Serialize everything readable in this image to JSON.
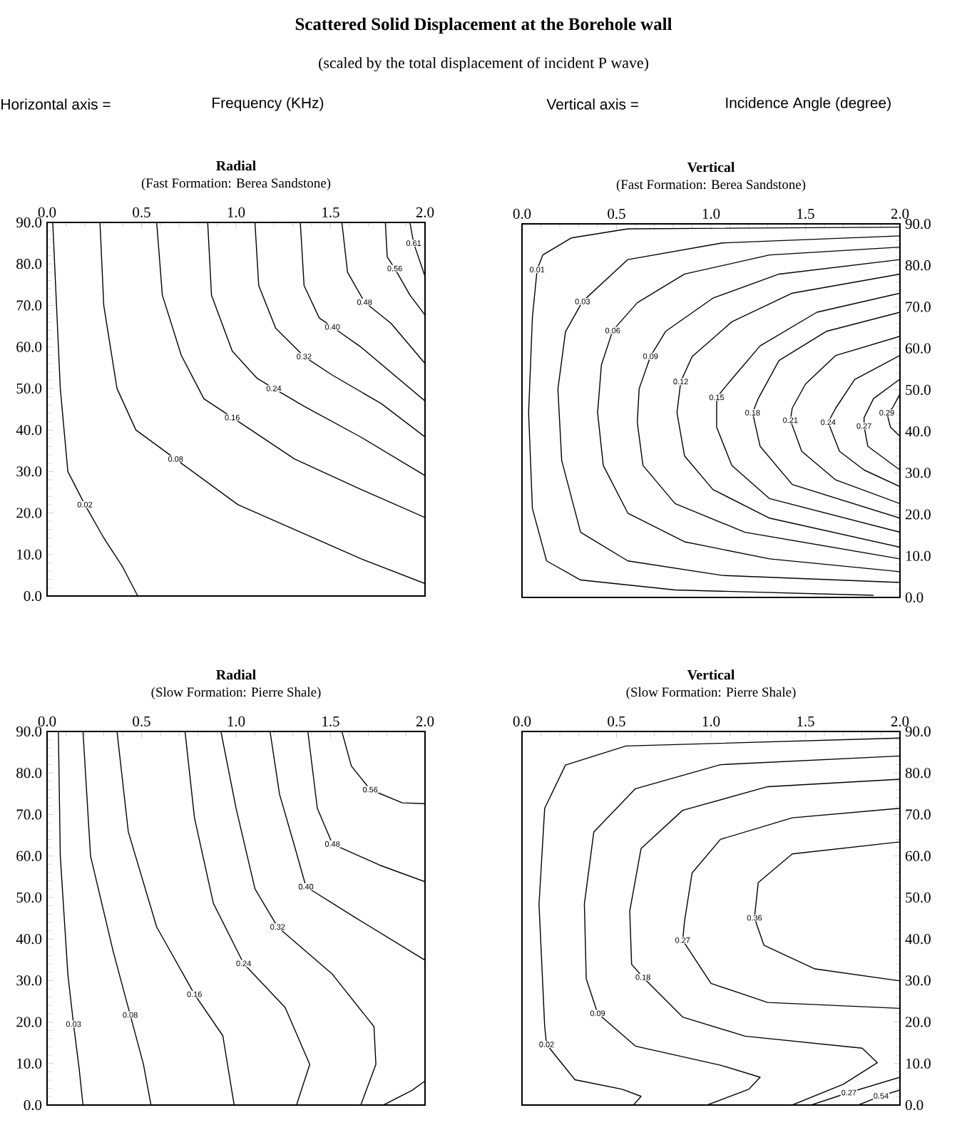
{
  "chart_data": [
    {
      "type": "other",
      "title": "Scattered  Solid  Displacement  at  the  Borehole  wall",
      "subtitle": "(scaled by the total displacement of incident P wave)",
      "annotations": [
        "Horizontal axis =",
        "Frequency (KHz)",
        "Vertical axis =",
        "Incidence Angle (degree)"
      ]
    },
    {
      "type": "line",
      "title": "Radial",
      "subtitle": "(Fast Formation: Berea Sandstone)",
      "marker": "none",
      "xlim": [
        0,
        2
      ],
      "ylim": [
        0,
        90
      ],
      "xticks": [
        {
          "value": 0,
          "label": "0.0"
        },
        {
          "value": 0.5,
          "label": "0.5"
        },
        {
          "value": 1,
          "label": "1.0"
        },
        {
          "value": 1.5,
          "label": "1.5"
        },
        {
          "value": 2,
          "label": "2.0"
        }
      ],
      "yticks": [
        {
          "value": 0,
          "label": "0.0"
        },
        {
          "value": 10,
          "label": "10.0"
        },
        {
          "value": 20,
          "label": "20.0"
        },
        {
          "value": 30,
          "label": "30.0"
        },
        {
          "value": 40,
          "label": "40.0"
        },
        {
          "value": 50,
          "label": "50.0"
        },
        {
          "value": 60,
          "label": "60.0"
        },
        {
          "value": 70,
          "label": "70.0"
        },
        {
          "value": 80,
          "label": "80.0"
        },
        {
          "value": 90,
          "label": "90.0"
        }
      ],
      "series": [
        {
          "color": "#000000",
          "x": [
            0.03,
            0.05,
            0.07,
            0.11,
            0.2,
            0.3,
            0.4,
            0.48
          ],
          "values": [
            90,
            70,
            50,
            30,
            22,
            14,
            7,
            0
          ]
        },
        {
          "color": "#000000",
          "x": [
            0.28,
            0.3,
            0.37,
            0.47,
            0.68,
            1.01,
            1.36,
            1.66,
            2.0
          ],
          "values": [
            90,
            70,
            50,
            40,
            33,
            22,
            15,
            9,
            3
          ]
        },
        {
          "color": "#000000",
          "x": [
            0.58,
            0.61,
            0.71,
            0.83,
            0.98,
            1.06,
            1.31,
            1.66,
            2.0
          ],
          "values": [
            90,
            72.5,
            58,
            47.5,
            43,
            40.6,
            33,
            25.7,
            18.9
          ]
        },
        {
          "color": "#000000",
          "x": [
            0.85,
            0.87,
            0.98,
            1.11,
            1.2,
            1.36,
            1.66,
            2.0
          ],
          "values": [
            90,
            72.5,
            59,
            52.5,
            50,
            45.7,
            38.3,
            29
          ]
        },
        {
          "color": "#000000",
          "x": [
            1.1,
            1.12,
            1.21,
            1.31,
            1.36,
            1.51,
            1.77,
            2.0
          ],
          "values": [
            90,
            74.8,
            64.5,
            60,
            57.7,
            53.2,
            46.3,
            38.3
          ]
        },
        {
          "color": "#000000",
          "x": [
            1.34,
            1.36,
            1.44,
            1.51,
            1.66,
            2.0
          ],
          "values": [
            90,
            74.8,
            67,
            64.8,
            60,
            47
          ]
        },
        {
          "color": "#000000",
          "x": [
            1.56,
            1.59,
            1.68,
            1.82,
            2.0
          ],
          "values": [
            90,
            78,
            70.8,
            65.7,
            56
          ]
        },
        {
          "color": "#000000",
          "x": [
            1.79,
            1.8,
            1.84,
            1.92,
            2.0
          ],
          "values": [
            90,
            81.7,
            78.9,
            72.5,
            67.7
          ]
        },
        {
          "color": "#000000",
          "x": [
            1.92,
            1.94,
            2.0
          ],
          "values": [
            90,
            85,
            77
          ]
        }
      ],
      "annotations": [
        {
          "text": "0.02",
          "x": 0.2,
          "y": 22
        },
        {
          "text": "0.08",
          "x": 0.68,
          "y": 33
        },
        {
          "text": "0.16",
          "x": 0.98,
          "y": 43
        },
        {
          "text": "0.24",
          "x": 1.2,
          "y": 50
        },
        {
          "text": "0.32",
          "x": 1.36,
          "y": 57.7
        },
        {
          "text": "0.40",
          "x": 1.51,
          "y": 64.8
        },
        {
          "text": "0.48",
          "x": 1.68,
          "y": 70.8
        },
        {
          "text": "0.56",
          "x": 1.84,
          "y": 78.9
        },
        {
          "text": "0.61",
          "x": 1.94,
          "y": 85
        }
      ]
    },
    {
      "type": "line",
      "title": "Vertical",
      "subtitle": "(Fast Formation: Berea Sandstone)",
      "marker": "none",
      "xlim": [
        0,
        2
      ],
      "ylim": [
        0,
        90
      ],
      "xticks": [
        {
          "value": 0,
          "label": "0.0"
        },
        {
          "value": 0.5,
          "label": "0.5"
        },
        {
          "value": 1,
          "label": "1.0"
        },
        {
          "value": 1.5,
          "label": "1.5"
        },
        {
          "value": 2,
          "label": "2.0"
        }
      ],
      "yticks": [
        {
          "value": 0,
          "label": "0.0"
        },
        {
          "value": 10,
          "label": "10.0"
        },
        {
          "value": 20,
          "label": "20.0"
        },
        {
          "value": 30,
          "label": "30.0"
        },
        {
          "value": 40,
          "label": "40.0"
        },
        {
          "value": 50,
          "label": "50.0"
        },
        {
          "value": 60,
          "label": "60.0"
        },
        {
          "value": 70,
          "label": "70.0"
        },
        {
          "value": 80,
          "label": "80.0"
        },
        {
          "value": 90,
          "label": "90.0"
        }
      ],
      "series": [
        {
          "color": "#000000",
          "x": [
            2,
            0.56,
            0.26,
            0.11,
            0.08,
            0.055,
            0.035,
            0.055,
            0.13,
            0.31,
            0.81,
            1.86
          ],
          "values": [
            89.2,
            88.8,
            86.6,
            82.5,
            79,
            67.5,
            44.5,
            21.4,
            8.8,
            4.2,
            1.8,
            0.5
          ]
        },
        {
          "color": "#000000",
          "x": [
            2,
            1.06,
            0.56,
            0.32,
            0.23,
            0.19,
            0.21,
            0.31,
            0.56,
            1.06,
            2
          ],
          "values": [
            87.1,
            85.4,
            81.4,
            71.3,
            64,
            50.2,
            33,
            15.7,
            8.8,
            5.3,
            3.6
          ]
        },
        {
          "color": "#000000",
          "x": [
            2,
            1.31,
            0.86,
            0.61,
            0.48,
            0.42,
            0.4,
            0.43,
            0.56,
            0.86,
            1.31,
            2
          ],
          "values": [
            84.4,
            82.5,
            77.9,
            71,
            64.3,
            56,
            44.5,
            31.8,
            20.3,
            13.4,
            9.3,
            6.2
          ]
        },
        {
          "color": "#000000",
          "x": [
            2,
            1.36,
            1.01,
            0.76,
            0.68,
            0.62,
            0.61,
            0.64,
            0.81,
            1.18,
            2
          ],
          "values": [
            81.4,
            77.9,
            72.1,
            64.1,
            58.1,
            50.3,
            42.2,
            31.8,
            22.6,
            15.7,
            9.3
          ]
        },
        {
          "color": "#000000",
          "x": [
            2,
            1.43,
            1.11,
            0.9,
            0.84,
            0.82,
            0.86,
            1.01,
            1.31,
            2
          ],
          "values": [
            77.9,
            73.3,
            66.4,
            58,
            52,
            44.5,
            34.1,
            26,
            19.1,
            12.1
          ]
        },
        {
          "color": "#000000",
          "x": [
            2,
            1.56,
            1.26,
            1.11,
            1.03,
            1.03,
            1.11,
            1.31,
            2
          ],
          "values": [
            73.3,
            68.7,
            60.6,
            52.6,
            48.2,
            41,
            31.8,
            23.8,
            15.7
          ]
        },
        {
          "color": "#000000",
          "x": [
            2,
            1.61,
            1.36,
            1.25,
            1.22,
            1.26,
            1.43,
            2
          ],
          "values": [
            68.7,
            64.1,
            57.1,
            47.9,
            44.5,
            36.4,
            27.2,
            19.1
          ]
        },
        {
          "color": "#000000",
          "x": [
            2,
            1.66,
            1.5,
            1.43,
            1.42,
            1.48,
            1.66,
            2
          ],
          "values": [
            62.9,
            58.3,
            51.4,
            45.6,
            42.7,
            35.2,
            28.3,
            22.6
          ]
        },
        {
          "color": "#000000",
          "x": [
            2,
            1.76,
            1.66,
            1.62,
            1.68,
            1.81,
            2
          ],
          "values": [
            58.3,
            52.5,
            45.6,
            42.2,
            35.2,
            30.7,
            26.7
          ]
        },
        {
          "color": "#000000",
          "x": [
            2,
            1.86,
            1.81,
            1.81,
            1.83,
            2
          ],
          "values": [
            52.6,
            47.9,
            43.3,
            41.3,
            36.4,
            30.7
          ]
        },
        {
          "color": "#000000",
          "x": [
            2,
            1.96,
            1.93,
            1.95,
            2
          ],
          "values": [
            49,
            45.6,
            44.5,
            41,
            38.8
          ]
        }
      ],
      "annotations": [
        {
          "text": "0.01",
          "x": 0.08,
          "y": 79
        },
        {
          "text": "0.03",
          "x": 0.32,
          "y": 71.3
        },
        {
          "text": "0.06",
          "x": 0.48,
          "y": 64.3
        },
        {
          "text": "0.09",
          "x": 0.68,
          "y": 58.1
        },
        {
          "text": "0.12",
          "x": 0.84,
          "y": 52
        },
        {
          "text": "0.15",
          "x": 1.03,
          "y": 48.2
        },
        {
          "text": "0.18",
          "x": 1.22,
          "y": 44.5
        },
        {
          "text": "0.21",
          "x": 1.42,
          "y": 42.7
        },
        {
          "text": "0.24",
          "x": 1.62,
          "y": 42.2
        },
        {
          "text": "0.27",
          "x": 1.81,
          "y": 41.3
        },
        {
          "text": "0.29",
          "x": 1.93,
          "y": 44.5
        }
      ]
    },
    {
      "type": "line",
      "title": "Radial",
      "subtitle": "(Slow Formation: Pierre Shale)",
      "marker": "none",
      "xlim": [
        0,
        2
      ],
      "ylim": [
        0,
        90
      ],
      "xticks": [
        {
          "value": 0,
          "label": "0.0"
        },
        {
          "value": 0.5,
          "label": "0.5"
        },
        {
          "value": 1,
          "label": "1.0"
        },
        {
          "value": 1.5,
          "label": "1.5"
        },
        {
          "value": 2,
          "label": "2.0"
        }
      ],
      "yticks": [
        {
          "value": 0,
          "label": "0.0"
        },
        {
          "value": 10,
          "label": "10.0"
        },
        {
          "value": 20,
          "label": "20.0"
        },
        {
          "value": 30,
          "label": "30.0"
        },
        {
          "value": 40,
          "label": "40.0"
        },
        {
          "value": 50,
          "label": "50.0"
        },
        {
          "value": 60,
          "label": "60.0"
        },
        {
          "value": 70,
          "label": "70.0"
        },
        {
          "value": 80,
          "label": "80.0"
        },
        {
          "value": 90,
          "label": "90.0"
        }
      ],
      "series": [
        {
          "color": "#000000",
          "x": [
            0.06,
            0.07,
            0.11,
            0.14,
            0.17,
            0.19
          ],
          "values": [
            90,
            60,
            31.5,
            19.5,
            8.7,
            0
          ]
        },
        {
          "color": "#000000",
          "x": [
            0.19,
            0.23,
            0.35,
            0.44,
            0.51,
            0.55
          ],
          "values": [
            90,
            60,
            37,
            21.7,
            9.8,
            0
          ]
        },
        {
          "color": "#000000",
          "x": [
            0.37,
            0.43,
            0.58,
            0.78,
            0.93,
            0.99
          ],
          "values": [
            90,
            65.8,
            42.9,
            26.7,
            16.7,
            0
          ]
        },
        {
          "color": "#000000",
          "x": [
            0.73,
            0.78,
            0.88,
            1.04,
            1.26,
            1.39,
            1.32
          ],
          "values": [
            90,
            69.2,
            48.6,
            34.1,
            23.5,
            9.8,
            0
          ]
        },
        {
          "color": "#000000",
          "x": [
            0.92,
            1.0,
            1.1,
            1.22,
            1.51,
            1.73,
            1.74,
            1.66
          ],
          "values": [
            90,
            71.5,
            52.1,
            42.9,
            31.5,
            18.9,
            9.8,
            0
          ]
        },
        {
          "color": "#000000",
          "x": [
            1.18,
            1.23,
            1.31,
            1.37,
            1.63,
            2
          ],
          "values": [
            90,
            74.9,
            62.3,
            52.6,
            45.2,
            34.9
          ]
        },
        {
          "color": "#000000",
          "x": [
            1.38,
            1.43,
            1.51,
            1.76,
            2
          ],
          "values": [
            90,
            71.5,
            62.9,
            57.8,
            53.8
          ]
        },
        {
          "color": "#000000",
          "x": [
            1.56,
            1.61,
            1.71,
            1.88,
            2
          ],
          "values": [
            90,
            81.7,
            76,
            72.8,
            72.6
          ]
        },
        {
          "color": "#000000",
          "x": [
            1.78,
            1.93,
            2
          ],
          "values": [
            0,
            3.5,
            5.8
          ]
        }
      ],
      "annotations": [
        {
          "text": "0.03",
          "x": 0.14,
          "y": 19.5
        },
        {
          "text": "0.08",
          "x": 0.44,
          "y": 21.7
        },
        {
          "text": "0.16",
          "x": 0.78,
          "y": 26.7
        },
        {
          "text": "0.24",
          "x": 1.04,
          "y": 34.1
        },
        {
          "text": "0.32",
          "x": 1.22,
          "y": 42.9
        },
        {
          "text": "0.40",
          "x": 1.37,
          "y": 52.6
        },
        {
          "text": "0.48",
          "x": 1.51,
          "y": 62.9
        },
        {
          "text": "0.56",
          "x": 1.71,
          "y": 76
        }
      ]
    },
    {
      "type": "line",
      "title": "Vertical",
      "subtitle": "(Slow Formation: Pierre Shale)",
      "marker": "none",
      "xlim": [
        0,
        2
      ],
      "ylim": [
        0,
        90
      ],
      "xticks": [
        {
          "value": 0,
          "label": "0.0"
        },
        {
          "value": 0.5,
          "label": "0.5"
        },
        {
          "value": 1,
          "label": "1.0"
        },
        {
          "value": 1.5,
          "label": "1.5"
        },
        {
          "value": 2,
          "label": "2.0"
        }
      ],
      "yticks": [
        {
          "value": 0,
          "label": "0.0"
        },
        {
          "value": 10,
          "label": "10.0"
        },
        {
          "value": 20,
          "label": "20.0"
        },
        {
          "value": 30,
          "label": "30.0"
        },
        {
          "value": 40,
          "label": "40.0"
        },
        {
          "value": 50,
          "label": "50.0"
        },
        {
          "value": 60,
          "label": "60.0"
        },
        {
          "value": 70,
          "label": "70.0"
        },
        {
          "value": 80,
          "label": "80.0"
        },
        {
          "value": 90,
          "label": "90.0"
        }
      ],
      "series": [
        {
          "color": "#000000",
          "x": [
            2,
            0.55,
            0.23,
            0.12,
            0.09,
            0.12,
            0.13,
            0.28,
            0.53,
            0.63,
            0.59
          ],
          "values": [
            88.4,
            86.5,
            81.9,
            71.5,
            48.4,
            18.9,
            14.6,
            6.1,
            3.8,
            2.1,
            0
          ]
        },
        {
          "color": "#000000",
          "x": [
            2,
            1.05,
            0.6,
            0.38,
            0.33,
            0.34,
            0.4,
            0.6,
            1.05,
            1.26,
            1.2,
            0.98
          ],
          "values": [
            84.1,
            82,
            76.2,
            65.8,
            48.4,
            30.4,
            22.1,
            14.2,
            9.6,
            6.7,
            3.8,
            0
          ]
        },
        {
          "color": "#000000",
          "x": [
            2,
            1.3,
            0.85,
            0.63,
            0.57,
            0.58,
            0.64,
            0.85,
            1.18,
            1.8,
            1.88,
            1.7,
            1.43
          ],
          "values": [
            78.5,
            76.7,
            71,
            61.8,
            46.7,
            33.9,
            30.8,
            21.2,
            16.6,
            13.7,
            10.2,
            5,
            0
          ]
        },
        {
          "color": "#000000",
          "x": [
            2,
            1.43,
            1.05,
            0.9,
            0.86,
            0.85,
            1,
            1.3,
            2
          ],
          "values": [
            71.5,
            69.2,
            64,
            55.9,
            44.3,
            39.7,
            29.3,
            24.7,
            23.3
          ]
        },
        {
          "color": "#000000",
          "x": [
            2,
            1.43,
            1.25,
            1.23,
            1.28,
            1.55,
            2
          ],
          "values": [
            63.4,
            60.5,
            53.6,
            45.1,
            38.5,
            32.8,
            29.9
          ]
        },
        {
          "color": "#000000",
          "x": [
            1.53,
            1.73,
            2
          ],
          "values": [
            0,
            3,
            6.7
          ]
        },
        {
          "color": "#000000",
          "x": [
            1.78,
            1.9,
            2
          ],
          "values": [
            0,
            2.2,
            3.6
          ]
        }
      ],
      "annotations": [
        {
          "text": "0.02",
          "x": 0.13,
          "y": 14.6
        },
        {
          "text": "0.09",
          "x": 0.4,
          "y": 22.1
        },
        {
          "text": "0.18",
          "x": 0.64,
          "y": 30.8
        },
        {
          "text": "0.27",
          "x": 0.85,
          "y": 39.7
        },
        {
          "text": "0.36",
          "x": 1.23,
          "y": 45.1
        },
        {
          "text": "0.27",
          "x": 1.73,
          "y": 3
        },
        {
          "text": "0.54",
          "x": 1.9,
          "y": 2.2
        }
      ]
    }
  ]
}
